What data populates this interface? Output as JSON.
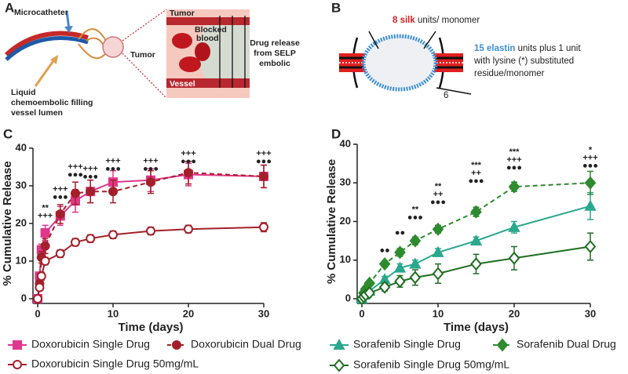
{
  "panel_letters": [
    "A",
    "B",
    "C",
    "D"
  ],
  "panel_a": {
    "microcatheter": "Microcatheter",
    "filling": [
      "Liquid",
      "chemoembolic filling",
      "vessel lumen"
    ],
    "tumor_left": "Tumor",
    "tumor_top": "Tumor",
    "blocked_blood": [
      "Blocked",
      "blood"
    ],
    "vessel": "Vessel",
    "drug_release": [
      "Drug release",
      "from SELP",
      "embolic"
    ]
  },
  "panel_b": {
    "silk_count": "8 silk",
    "silk_rest": "units/ monomer",
    "elastin_count": "15 elastin",
    "elastin_rest": "units plus 1 unit",
    "elastin_more": [
      "with lysine (*) substituted",
      "residue/monomer"
    ],
    "repeat": "6"
  },
  "chart_data": [
    {
      "type": "line",
      "xlabel": "Time (days)",
      "ylabel": "% Cumulative Release",
      "xlim": [
        0,
        30
      ],
      "ylim": [
        0,
        40
      ],
      "xticks": [
        0,
        10,
        20,
        30
      ],
      "yticks": [
        0,
        10,
        20,
        30,
        40
      ],
      "x": [
        0,
        0.25,
        0.5,
        1,
        3,
        5,
        7,
        10,
        15,
        20,
        30
      ],
      "series": [
        {
          "name": "Doxorubicin Single Drug",
          "color": "#e0368c",
          "marker": "square",
          "filled": true,
          "dashed": false,
          "values": [
            0,
            6,
            13,
            17.5,
            22,
            26,
            28.5,
            31,
            31.5,
            33,
            32.5
          ],
          "errors": [
            0,
            1,
            1.5,
            2,
            2.5,
            3,
            3,
            3,
            3,
            3,
            3
          ]
        },
        {
          "name": "Doxorubicin Dual Drug",
          "color": "#a3202a",
          "marker": "circle",
          "filled": true,
          "dashed": true,
          "values": [
            0,
            4,
            11,
            14,
            22.5,
            28,
            28.5,
            28.5,
            31,
            33.5,
            32.5
          ],
          "errors": [
            0,
            1,
            1.5,
            2,
            2.5,
            3,
            3,
            3,
            3,
            3,
            3
          ]
        },
        {
          "name": "Doxorubicin Single Drug 50mg/mL",
          "color": "#a3202a",
          "marker": "circle",
          "filled": false,
          "dashed": false,
          "values": [
            0,
            3,
            6,
            10,
            12,
            15,
            16,
            17,
            18,
            18.5,
            19
          ],
          "errors": [
            0,
            0.5,
            1,
            1,
            1,
            1,
            1,
            1,
            1,
            1,
            1.2
          ]
        }
      ],
      "annotations": [
        {
          "x": 1,
          "y": 24,
          "lines": [
            "**",
            "+++"
          ]
        },
        {
          "x": 3,
          "y": 29,
          "lines": [
            "+++",
            "●●●"
          ]
        },
        {
          "x": 5,
          "y": 35,
          "lines": [
            "+++",
            "●●●"
          ]
        },
        {
          "x": 7,
          "y": 34.5,
          "lines": [
            "+++",
            "●●●"
          ]
        },
        {
          "x": 10,
          "y": 36.5,
          "lines": [
            "+++",
            "●●●"
          ]
        },
        {
          "x": 15,
          "y": 36.5,
          "lines": [
            "+++",
            "●●●"
          ]
        },
        {
          "x": 20,
          "y": 38.5,
          "lines": [
            "+++",
            "●●●"
          ]
        },
        {
          "x": 30,
          "y": 38.5,
          "lines": [
            "+++",
            "●●●"
          ]
        }
      ]
    },
    {
      "type": "line",
      "xlabel": "Time (days)",
      "ylabel": "% Cumulative Release",
      "xlim": [
        0,
        30
      ],
      "ylim": [
        0,
        40
      ],
      "xticks": [
        0,
        10,
        20,
        30
      ],
      "yticks": [
        0,
        10,
        20,
        30,
        40
      ],
      "x": [
        0,
        0.25,
        0.5,
        1,
        3,
        5,
        7,
        10,
        15,
        20,
        30
      ],
      "series": [
        {
          "name": "Sorafenib Single Drug",
          "color": "#2aa88e",
          "marker": "triangle",
          "filled": true,
          "dashed": false,
          "values": [
            0,
            1,
            1.5,
            2,
            5,
            8,
            9,
            12,
            15,
            18.5,
            24
          ],
          "errors": [
            0,
            0.3,
            0.5,
            0.5,
            0.8,
            1,
            1,
            1,
            1,
            1.5,
            3.5
          ]
        },
        {
          "name": "Sorafenib Dual Drug",
          "color": "#2e8b2e",
          "marker": "diamond",
          "filled": true,
          "dashed": true,
          "values": [
            0,
            1.5,
            2.5,
            4,
            9,
            12,
            15,
            18,
            22.5,
            29,
            30
          ],
          "errors": [
            0,
            0.3,
            0.5,
            0.5,
            0.8,
            1,
            1,
            1,
            1.2,
            1.2,
            3
          ]
        },
        {
          "name": "Sorafenib Single Drug 50mg/mL",
          "color": "#1f6e22",
          "marker": "diamond",
          "filled": false,
          "dashed": false,
          "values": [
            0,
            0.5,
            1,
            1.5,
            3,
            4.5,
            5.5,
            6.5,
            9,
            10.5,
            13.5
          ],
          "errors": [
            0,
            0.3,
            0.5,
            0.5,
            1,
            1.5,
            2,
            2.5,
            2.5,
            3,
            3.5
          ]
        }
      ],
      "annotations": [
        {
          "x": 3,
          "y": 12.5,
          "lines": [
            "●●"
          ]
        },
        {
          "x": 5,
          "y": 17,
          "lines": [
            "●●"
          ]
        },
        {
          "x": 7,
          "y": 23,
          "lines": [
            "**",
            "●●●"
          ]
        },
        {
          "x": 10,
          "y": 29,
          "lines": [
            "**",
            "++",
            "●●●"
          ]
        },
        {
          "x": 15,
          "y": 34.5,
          "lines": [
            "***",
            "++",
            "●●●"
          ]
        },
        {
          "x": 20,
          "y": 38,
          "lines": [
            "***",
            "+++",
            "●●●"
          ]
        },
        {
          "x": 30,
          "y": 38.5,
          "lines": [
            "*",
            "+++",
            "●●●"
          ]
        }
      ]
    }
  ]
}
